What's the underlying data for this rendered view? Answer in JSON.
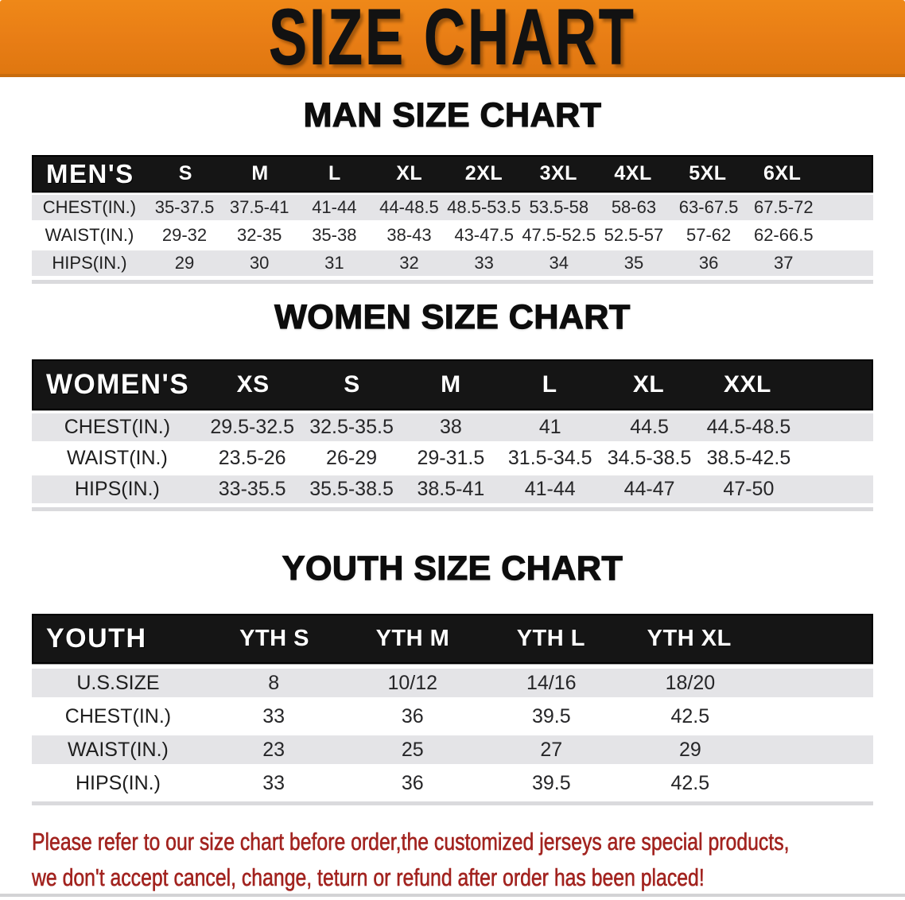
{
  "banner": {
    "title": "SIZE CHART",
    "bg_color": "#e87d15",
    "text_color": "#121212"
  },
  "titles": {
    "men": "MAN SIZE CHART",
    "women": "WOMEN SIZE CHART",
    "youth": "YOUTH SIZE CHART"
  },
  "colors": {
    "header_bar": "#151515",
    "shaded_row": "#e4e4e7",
    "disclaimer_red": "#a2231f"
  },
  "tables": {
    "men": {
      "label": "MEN'S",
      "sizes": [
        "S",
        "M",
        "L",
        "XL",
        "2XL",
        "3XL",
        "4XL",
        "5XL",
        "6XL"
      ],
      "rows": [
        {
          "label": "CHEST(IN.)",
          "values": [
            "35-37.5",
            "37.5-41",
            "41-44",
            "44-48.5",
            "48.5-53.5",
            "53.5-58",
            "58-63",
            "63-67.5",
            "67.5-72"
          ]
        },
        {
          "label": "WAIST(IN.)",
          "values": [
            "29-32",
            "32-35",
            "35-38",
            "38-43",
            "43-47.5",
            "47.5-52.5",
            "52.5-57",
            "57-62",
            "62-66.5"
          ]
        },
        {
          "label": "HIPS(IN.)",
          "values": [
            "29",
            "30",
            "31",
            "32",
            "33",
            "34",
            "35",
            "36",
            "37"
          ]
        }
      ]
    },
    "women": {
      "label": "WOMEN'S",
      "sizes": [
        "XS",
        "S",
        "M",
        "L",
        "XL",
        "XXL"
      ],
      "rows": [
        {
          "label": "CHEST(IN.)",
          "values": [
            "29.5-32.5",
            "32.5-35.5",
            "38",
            "41",
            "44.5",
            "44.5-48.5"
          ]
        },
        {
          "label": "WAIST(IN.)",
          "values": [
            "23.5-26",
            "26-29",
            "29-31.5",
            "31.5-34.5",
            "34.5-38.5",
            "38.5-42.5"
          ]
        },
        {
          "label": "HIPS(IN.)",
          "values": [
            "33-35.5",
            "35.5-38.5",
            "38.5-41",
            "41-44",
            "44-47",
            "47-50"
          ]
        }
      ]
    },
    "youth": {
      "label": "YOUTH",
      "sizes": [
        "YTH S",
        "YTH M",
        "YTH L",
        "YTH XL"
      ],
      "rows": [
        {
          "label": "U.S.SIZE",
          "values": [
            "8",
            "10/12",
            "14/16",
            "18/20"
          ]
        },
        {
          "label": "CHEST(IN.)",
          "values": [
            "33",
            "36",
            "39.5",
            "42.5"
          ]
        },
        {
          "label": "WAIST(IN.)",
          "values": [
            "23",
            "25",
            "27",
            "29"
          ]
        },
        {
          "label": "HIPS(IN.)",
          "values": [
            "33",
            "36",
            "39.5",
            "42.5"
          ]
        }
      ]
    }
  },
  "disclaimer": {
    "line1": "Please refer to our size chart before order,the customized jerseys are special products,",
    "line2": "we don't accept cancel, change, teturn or refund after order has been placed!"
  }
}
